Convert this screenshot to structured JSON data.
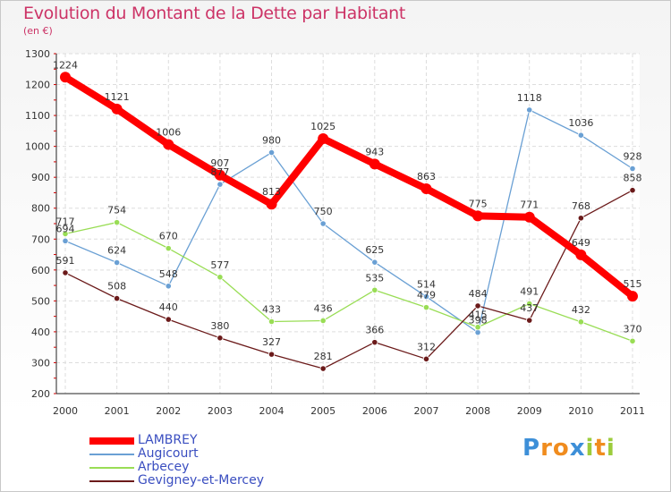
{
  "chart_data": {
    "type": "line",
    "title": "Evolution du Montant de la Dette par Habitant",
    "subtitle": "(en €)",
    "categories": [
      "2000",
      "2001",
      "2002",
      "2003",
      "2004",
      "2005",
      "2006",
      "2007",
      "2008",
      "2009",
      "2010",
      "2011"
    ],
    "ylim": [
      200,
      1300
    ],
    "yticks": [
      200,
      300,
      400,
      500,
      600,
      700,
      800,
      900,
      1000,
      1100,
      1200,
      1300
    ],
    "grid": true,
    "legend_position": "bottom-left",
    "series": [
      {
        "name": "LAMBREY",
        "color": "#ff0000",
        "values": [
          1224,
          1121,
          1006,
          907,
          813,
          1025,
          943,
          863,
          775,
          771,
          649,
          515
        ],
        "labels": [
          "1224",
          "1121",
          "1006",
          "907",
          "813",
          "1025",
          "943",
          "863",
          "775",
          "771",
          "649",
          "515"
        ]
      },
      {
        "name": "Augicourt",
        "color": "#6aa0d4",
        "values": [
          694,
          624,
          548,
          877,
          980,
          750,
          625,
          514,
          398,
          1118,
          1036,
          928
        ],
        "labels": [
          "694",
          "624",
          "548",
          "877",
          "980",
          "750",
          "625",
          "514",
          "398",
          "1118",
          "1036",
          "928"
        ]
      },
      {
        "name": "Arbecey",
        "color": "#99dd55",
        "values": [
          717,
          754,
          670,
          577,
          433,
          436,
          535,
          479,
          415,
          491,
          432,
          370
        ],
        "labels": [
          "717",
          "754",
          "670",
          "577",
          "433",
          "436",
          "535",
          "479",
          "415",
          "491",
          "432",
          "370"
        ]
      },
      {
        "name": "Gevigney-et-Mercey",
        "color": "#6b1a1a",
        "values": [
          591,
          508,
          440,
          380,
          327,
          281,
          366,
          312,
          484,
          437,
          768,
          858
        ],
        "labels": [
          "591",
          "508",
          "440",
          "380",
          "327",
          "281",
          "366",
          "312",
          "484",
          "437",
          "768",
          "858"
        ]
      }
    ]
  },
  "logo": {
    "text": "Proxiti",
    "letters": [
      "P",
      "r",
      "o",
      "x",
      "i",
      "t",
      "i"
    ],
    "colors": [
      "#3d8fd8",
      "#f08c1e",
      "#f08c1e",
      "#3d8fd8",
      "#9ccc3c",
      "#f08c1e",
      "#9ccc3c"
    ]
  }
}
